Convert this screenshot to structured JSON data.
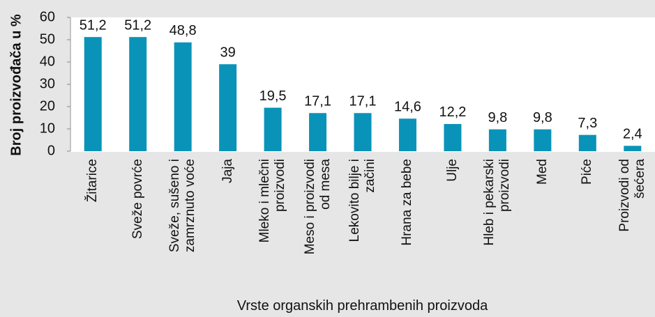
{
  "chart_data": {
    "type": "bar",
    "xlabel": "Vrste organskih prehrambenih proizvoda",
    "ylabel": "Broj proizvođača u %",
    "categories": [
      "Žitarice",
      "Sveže povrće",
      "Sveže, sušeno i\nzamrznuto voće",
      "Jaja",
      "Mleko i mlečni\nproizvodi",
      "Meso i proizvodi\nod mesa",
      "Lekovito bilje i\nzačini",
      "Hrana za bebe",
      "Ulje",
      "Hleb i pekarski\nproizvodi",
      "Med",
      "Piće",
      "Proizvodi od\nšećera"
    ],
    "values": [
      51.2,
      51.2,
      48.8,
      39,
      19.5,
      17.1,
      17.1,
      14.6,
      12.2,
      9.8,
      9.8,
      7.3,
      2.4
    ],
    "value_labels": [
      "51,2",
      "51,2",
      "48,8",
      "39",
      "19,5",
      "17,1",
      "17,1",
      "14,6",
      "12,2",
      "9,8",
      "9,8",
      "7,3",
      "2,4"
    ],
    "color": "#0a93b8",
    "ylim": [
      0,
      60
    ],
    "yticks": [
      0,
      10,
      20,
      30,
      40,
      50,
      60
    ],
    "grid": false
  }
}
